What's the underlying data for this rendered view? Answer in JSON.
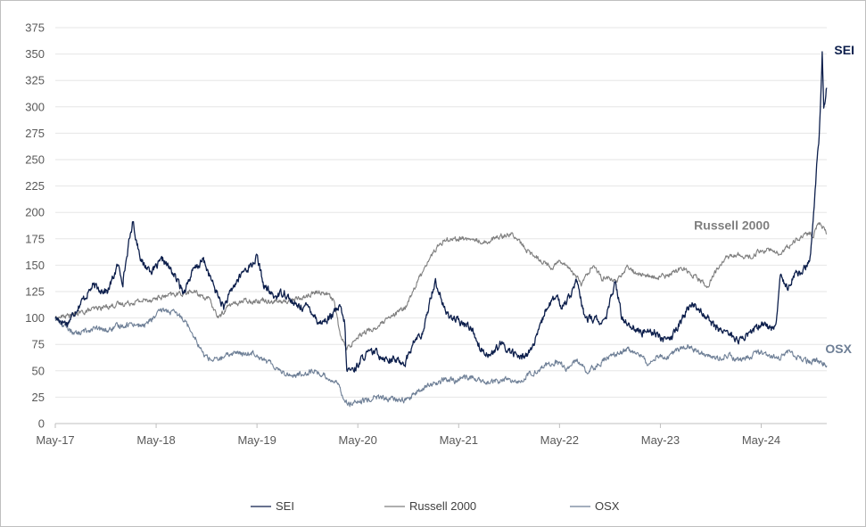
{
  "chart_data": {
    "type": "line",
    "title": "",
    "xlabel": "",
    "ylabel": "",
    "ylim": [
      0,
      375
    ],
    "yticks": [
      0,
      25,
      50,
      75,
      100,
      125,
      150,
      175,
      200,
      225,
      250,
      275,
      300,
      325,
      350,
      375
    ],
    "xlim": [
      2017.33,
      2024.98
    ],
    "xticks": [
      {
        "label": "May-17",
        "t": 2017.33
      },
      {
        "label": "May-18",
        "t": 2018.33
      },
      {
        "label": "May-19",
        "t": 2019.33
      },
      {
        "label": "May-20",
        "t": 2020.33
      },
      {
        "label": "May-21",
        "t": 2021.33
      },
      {
        "label": "May-22",
        "t": 2022.33
      },
      {
        "label": "May-23",
        "t": 2023.33
      },
      {
        "label": "May-24",
        "t": 2024.33
      }
    ],
    "grid": true,
    "legend_position": "bottom",
    "series": [
      {
        "name": "SEI",
        "end_label": "SEI",
        "color": "#0d1f4c",
        "noise": 3.0,
        "points": [
          [
            2017.33,
            100
          ],
          [
            2017.45,
            95
          ],
          [
            2017.55,
            110
          ],
          [
            2017.7,
            130
          ],
          [
            2017.85,
            125
          ],
          [
            2017.95,
            150
          ],
          [
            2018.0,
            135
          ],
          [
            2018.05,
            165
          ],
          [
            2018.1,
            192
          ],
          [
            2018.13,
            175
          ],
          [
            2018.2,
            150
          ],
          [
            2018.3,
            145
          ],
          [
            2018.4,
            155
          ],
          [
            2018.5,
            142
          ],
          [
            2018.6,
            125
          ],
          [
            2018.7,
            145
          ],
          [
            2018.8,
            155
          ],
          [
            2018.9,
            130
          ],
          [
            2019.0,
            110
          ],
          [
            2019.1,
            130
          ],
          [
            2019.2,
            145
          ],
          [
            2019.28,
            150
          ],
          [
            2019.33,
            158
          ],
          [
            2019.4,
            130
          ],
          [
            2019.5,
            120
          ],
          [
            2019.6,
            125
          ],
          [
            2019.7,
            112
          ],
          [
            2019.85,
            110
          ],
          [
            2019.95,
            95
          ],
          [
            2020.05,
            100
          ],
          [
            2020.15,
            110
          ],
          [
            2020.2,
            95
          ],
          [
            2020.22,
            50
          ],
          [
            2020.3,
            52
          ],
          [
            2020.4,
            65
          ],
          [
            2020.5,
            68
          ],
          [
            2020.6,
            62
          ],
          [
            2020.7,
            60
          ],
          [
            2020.8,
            58
          ],
          [
            2020.9,
            80
          ],
          [
            2020.98,
            85
          ],
          [
            2021.05,
            120
          ],
          [
            2021.1,
            135
          ],
          [
            2021.2,
            105
          ],
          [
            2021.35,
            95
          ],
          [
            2021.45,
            92
          ],
          [
            2021.55,
            70
          ],
          [
            2021.65,
            65
          ],
          [
            2021.75,
            75
          ],
          [
            2021.85,
            68
          ],
          [
            2021.95,
            62
          ],
          [
            2022.05,
            70
          ],
          [
            2022.12,
            85
          ],
          [
            2022.2,
            110
          ],
          [
            2022.3,
            120
          ],
          [
            2022.35,
            110
          ],
          [
            2022.45,
            125
          ],
          [
            2022.5,
            135
          ],
          [
            2022.58,
            100
          ],
          [
            2022.7,
            98
          ],
          [
            2022.78,
            95
          ],
          [
            2022.88,
            135
          ],
          [
            2022.95,
            100
          ],
          [
            2023.05,
            92
          ],
          [
            2023.15,
            85
          ],
          [
            2023.2,
            90
          ],
          [
            2023.3,
            85
          ],
          [
            2023.38,
            78
          ],
          [
            2023.45,
            82
          ],
          [
            2023.55,
            100
          ],
          [
            2023.62,
            112
          ],
          [
            2023.7,
            110
          ],
          [
            2023.8,
            100
          ],
          [
            2023.88,
            90
          ],
          [
            2023.98,
            88
          ],
          [
            2024.05,
            82
          ],
          [
            2024.12,
            78
          ],
          [
            2024.2,
            85
          ],
          [
            2024.28,
            90
          ],
          [
            2024.35,
            95
          ],
          [
            2024.42,
            90
          ],
          [
            2024.48,
            95
          ],
          [
            2024.52,
            140
          ],
          [
            2024.6,
            130
          ],
          [
            2024.65,
            140
          ],
          [
            2024.68,
            145
          ],
          [
            2024.72,
            140
          ],
          [
            2024.78,
            150
          ],
          [
            2024.82,
            160
          ],
          [
            2024.85,
            200
          ],
          [
            2024.88,
            245
          ],
          [
            2024.9,
            265
          ],
          [
            2024.92,
            305
          ],
          [
            2024.935,
            350
          ],
          [
            2024.95,
            300
          ],
          [
            2024.97,
            310
          ],
          [
            2024.98,
            318
          ]
        ]
      },
      {
        "name": "Russell 2000",
        "end_label": "Russell 2000",
        "color": "#7f7f7f",
        "noise": 2.0,
        "points": [
          [
            2017.33,
            100
          ],
          [
            2017.5,
            103
          ],
          [
            2017.7,
            108
          ],
          [
            2017.9,
            112
          ],
          [
            2018.1,
            115
          ],
          [
            2018.3,
            118
          ],
          [
            2018.5,
            122
          ],
          [
            2018.7,
            125
          ],
          [
            2018.85,
            118
          ],
          [
            2018.95,
            100
          ],
          [
            2019.05,
            112
          ],
          [
            2019.2,
            116
          ],
          [
            2019.4,
            117
          ],
          [
            2019.6,
            115
          ],
          [
            2019.8,
            120
          ],
          [
            2019.95,
            125
          ],
          [
            2020.05,
            122
          ],
          [
            2020.1,
            115
          ],
          [
            2020.15,
            85
          ],
          [
            2020.22,
            70
          ],
          [
            2020.35,
            85
          ],
          [
            2020.5,
            90
          ],
          [
            2020.65,
            100
          ],
          [
            2020.8,
            110
          ],
          [
            2020.9,
            130
          ],
          [
            2021.0,
            150
          ],
          [
            2021.1,
            165
          ],
          [
            2021.2,
            175
          ],
          [
            2021.4,
            175
          ],
          [
            2021.6,
            172
          ],
          [
            2021.75,
            178
          ],
          [
            2021.85,
            180
          ],
          [
            2021.95,
            170
          ],
          [
            2022.05,
            160
          ],
          [
            2022.15,
            155
          ],
          [
            2022.25,
            148
          ],
          [
            2022.35,
            155
          ],
          [
            2022.45,
            145
          ],
          [
            2022.55,
            132
          ],
          [
            2022.65,
            150
          ],
          [
            2022.75,
            138
          ],
          [
            2022.9,
            135
          ],
          [
            2023.0,
            148
          ],
          [
            2023.1,
            142
          ],
          [
            2023.2,
            140
          ],
          [
            2023.3,
            138
          ],
          [
            2023.4,
            140
          ],
          [
            2023.55,
            148
          ],
          [
            2023.7,
            138
          ],
          [
            2023.8,
            130
          ],
          [
            2023.9,
            148
          ],
          [
            2024.0,
            158
          ],
          [
            2024.1,
            160
          ],
          [
            2024.2,
            157
          ],
          [
            2024.3,
            162
          ],
          [
            2024.4,
            165
          ],
          [
            2024.5,
            160
          ],
          [
            2024.6,
            168
          ],
          [
            2024.7,
            175
          ],
          [
            2024.8,
            180
          ],
          [
            2024.85,
            178
          ],
          [
            2024.9,
            192
          ],
          [
            2024.95,
            185
          ],
          [
            2024.98,
            180
          ]
        ]
      },
      {
        "name": "OSX",
        "end_label": "OSX",
        "color": "#6e7f96",
        "noise": 2.2,
        "points": [
          [
            2017.33,
            100
          ],
          [
            2017.45,
            90
          ],
          [
            2017.55,
            85
          ],
          [
            2017.7,
            90
          ],
          [
            2017.85,
            88
          ],
          [
            2017.95,
            92
          ],
          [
            2018.1,
            95
          ],
          [
            2018.2,
            92
          ],
          [
            2018.3,
            100
          ],
          [
            2018.4,
            108
          ],
          [
            2018.5,
            105
          ],
          [
            2018.6,
            100
          ],
          [
            2018.7,
            85
          ],
          [
            2018.8,
            65
          ],
          [
            2018.9,
            60
          ],
          [
            2019.0,
            62
          ],
          [
            2019.1,
            68
          ],
          [
            2019.2,
            65
          ],
          [
            2019.3,
            68
          ],
          [
            2019.4,
            60
          ],
          [
            2019.5,
            55
          ],
          [
            2019.6,
            48
          ],
          [
            2019.7,
            45
          ],
          [
            2019.8,
            48
          ],
          [
            2019.9,
            50
          ],
          [
            2020.0,
            45
          ],
          [
            2020.1,
            40
          ],
          [
            2020.15,
            35
          ],
          [
            2020.2,
            22
          ],
          [
            2020.25,
            18
          ],
          [
            2020.35,
            20
          ],
          [
            2020.5,
            25
          ],
          [
            2020.65,
            23
          ],
          [
            2020.8,
            22
          ],
          [
            2020.9,
            28
          ],
          [
            2021.0,
            35
          ],
          [
            2021.1,
            38
          ],
          [
            2021.2,
            42
          ],
          [
            2021.3,
            40
          ],
          [
            2021.4,
            45
          ],
          [
            2021.5,
            42
          ],
          [
            2021.6,
            38
          ],
          [
            2021.7,
            40
          ],
          [
            2021.8,
            42
          ],
          [
            2021.9,
            38
          ],
          [
            2022.0,
            45
          ],
          [
            2022.1,
            50
          ],
          [
            2022.2,
            55
          ],
          [
            2022.3,
            58
          ],
          [
            2022.4,
            52
          ],
          [
            2022.5,
            60
          ],
          [
            2022.6,
            50
          ],
          [
            2022.7,
            55
          ],
          [
            2022.8,
            62
          ],
          [
            2022.9,
            65
          ],
          [
            2023.0,
            70
          ],
          [
            2023.1,
            68
          ],
          [
            2023.2,
            58
          ],
          [
            2023.3,
            65
          ],
          [
            2023.4,
            62
          ],
          [
            2023.5,
            70
          ],
          [
            2023.6,
            75
          ],
          [
            2023.7,
            68
          ],
          [
            2023.8,
            65
          ],
          [
            2023.9,
            62
          ],
          [
            2024.0,
            65
          ],
          [
            2024.1,
            60
          ],
          [
            2024.2,
            62
          ],
          [
            2024.3,
            68
          ],
          [
            2024.4,
            65
          ],
          [
            2024.5,
            62
          ],
          [
            2024.6,
            68
          ],
          [
            2024.7,
            62
          ],
          [
            2024.8,
            58
          ],
          [
            2024.9,
            60
          ],
          [
            2024.98,
            55
          ]
        ]
      }
    ]
  }
}
